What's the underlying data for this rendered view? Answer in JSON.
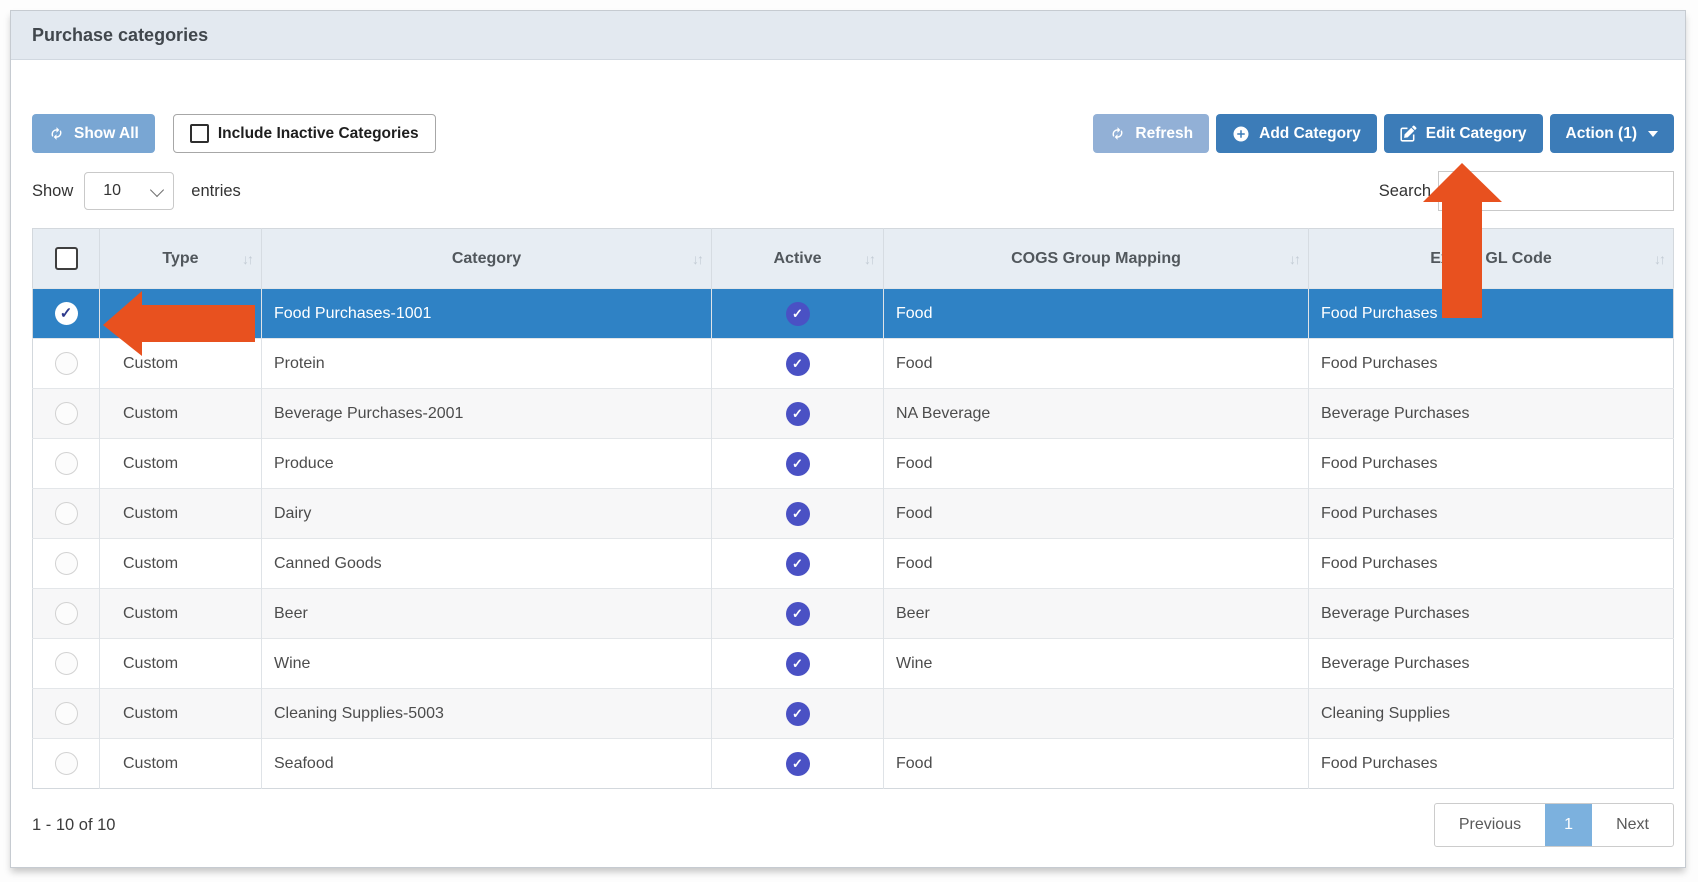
{
  "window": {
    "title": "Purchase categories"
  },
  "toolbar": {
    "show_all_label": "Show All",
    "include_inactive_label": "Include Inactive Categories",
    "include_inactive_checked": false,
    "refresh_label": "Refresh",
    "add_category_label": "Add Category",
    "edit_category_label": "Edit Category",
    "action_label": "Action (1)"
  },
  "entries_control": {
    "show_label": "Show",
    "page_size": "10",
    "entries_label": "entries"
  },
  "search": {
    "label": "Search",
    "value": ""
  },
  "table": {
    "sort_icon": "↓↑",
    "select_all_checked": false,
    "columns": [
      "Type",
      "Category",
      "Active",
      "COGS Group Mapping",
      "Export GL Code"
    ],
    "rows": [
      {
        "type": "",
        "category": "Food Purchases-1001",
        "active": true,
        "cogs": "Food",
        "gl": "Food Purchases",
        "selected": true
      },
      {
        "type": "Custom",
        "category": "Protein",
        "active": true,
        "cogs": "Food",
        "gl": "Food Purchases",
        "selected": false
      },
      {
        "type": "Custom",
        "category": "Beverage Purchases-2001",
        "active": true,
        "cogs": "NA Beverage",
        "gl": "Beverage Purchases",
        "selected": false
      },
      {
        "type": "Custom",
        "category": "Produce",
        "active": true,
        "cogs": "Food",
        "gl": "Food Purchases",
        "selected": false
      },
      {
        "type": "Custom",
        "category": "Dairy",
        "active": true,
        "cogs": "Food",
        "gl": "Food Purchases",
        "selected": false
      },
      {
        "type": "Custom",
        "category": "Canned Goods",
        "active": true,
        "cogs": "Food",
        "gl": "Food Purchases",
        "selected": false
      },
      {
        "type": "Custom",
        "category": "Beer",
        "active": true,
        "cogs": "Beer",
        "gl": "Beverage Purchases",
        "selected": false
      },
      {
        "type": "Custom",
        "category": "Wine",
        "active": true,
        "cogs": "Wine",
        "gl": "Beverage Purchases",
        "selected": false
      },
      {
        "type": "Custom",
        "category": "Cleaning Supplies-5003",
        "active": true,
        "cogs": "",
        "gl": "Cleaning Supplies",
        "selected": false
      },
      {
        "type": "Custom",
        "category": "Seafood",
        "active": true,
        "cogs": "Food",
        "gl": "Food Purchases",
        "selected": false
      }
    ]
  },
  "footer": {
    "info": "1 - 10 of 10",
    "previous_label": "Previous",
    "current_page": "1",
    "next_label": "Next"
  },
  "annotations": {
    "left_arrow": {
      "direction": "left",
      "points_at": "selected-row-radio",
      "color": "#e8511f"
    },
    "up_arrow": {
      "direction": "up",
      "points_at": "edit-category-button",
      "color": "#e8511f"
    }
  },
  "colors": {
    "selected_row": "#2f82c5",
    "primary_button": "#3c7cb8",
    "show_all_button": "#79a6d3",
    "refresh_button": "#92b0d6",
    "active_badge": "#4a51c4",
    "active_page": "#7cb1de",
    "arrow": "#e8511f",
    "header_bg": "#e7edf3",
    "titlebar_bg": "#e3e9f0"
  }
}
